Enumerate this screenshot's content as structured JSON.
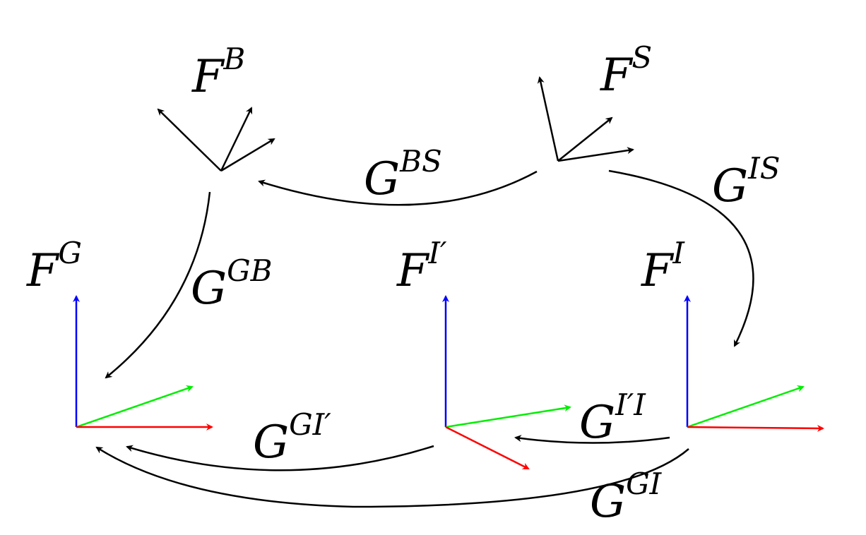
{
  "colors": {
    "ink": "#000000",
    "axis_x": "#ff0000",
    "axis_y": "#00ee00",
    "axis_z": "#0000ff"
  },
  "frames": {
    "B": {
      "base": "F",
      "sup": "B"
    },
    "S": {
      "base": "F",
      "sup": "S"
    },
    "G": {
      "base": "F",
      "sup": "G"
    },
    "Iprime": {
      "base": "F",
      "sup": "I′"
    },
    "I": {
      "base": "F",
      "sup": "I"
    }
  },
  "transforms": {
    "BS": {
      "base": "G",
      "sup": "BS"
    },
    "IS": {
      "base": "G",
      "sup": "IS"
    },
    "GB": {
      "base": "G",
      "sup": "GB"
    },
    "GIprime": {
      "base": "G",
      "sup": "GI′"
    },
    "IprimeI": {
      "base": "G",
      "sup": "I′I"
    },
    "GI": {
      "base": "G",
      "sup": "GI"
    }
  }
}
